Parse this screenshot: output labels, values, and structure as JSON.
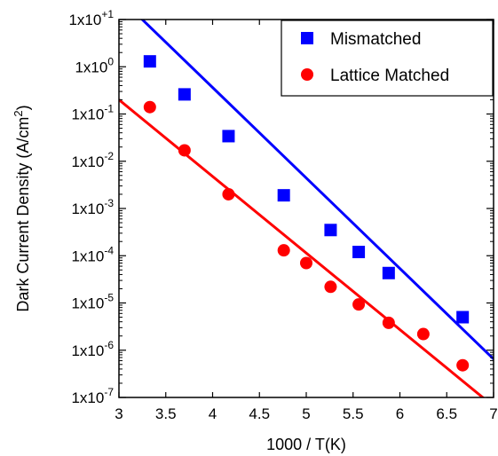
{
  "chart_data": {
    "type": "scatter",
    "xlabel": "1000 / T(K)",
    "ylabel": "Dark Current Density (A/cm²)",
    "ylabel_parts": {
      "main": "Dark Current Density (A/cm",
      "sup": "2",
      "tail": ")"
    },
    "xlim": [
      3,
      7
    ],
    "ylim_log10": [
      -7,
      1
    ],
    "yscale": "log",
    "x_ticks": [
      "3",
      "3.5",
      "4",
      "4.5",
      "5",
      "5.5",
      "6",
      "6.5",
      "7"
    ],
    "x_tick_values": [
      3,
      3.5,
      4,
      4.5,
      5,
      5.5,
      6,
      6.5,
      7
    ],
    "y_tick_exponents": [
      "-7",
      "-6",
      "-5",
      "-4",
      "-3",
      "-2",
      "-1",
      "0",
      "+1"
    ],
    "y_tick_base": "1x10",
    "grid": false,
    "legend_position": "top-right",
    "series": [
      {
        "name": "Mismatched",
        "marker": "square",
        "color": "#0000ff",
        "x": [
          3.33,
          3.7,
          4.17,
          4.76,
          5.26,
          5.56,
          5.88,
          6.67
        ],
        "y": [
          1.3,
          0.26,
          0.034,
          0.0019,
          0.00035,
          0.00012,
          4.3e-05,
          5e-06
        ],
        "fit_line": {
          "x": [
            3,
            7
          ],
          "y": [
            30,
            6.5e-07
          ]
        }
      },
      {
        "name": "Lattice Matched",
        "marker": "circle",
        "color": "#ff0000",
        "x": [
          3.33,
          3.7,
          4.17,
          4.76,
          5.0,
          5.26,
          5.56,
          5.88,
          6.25,
          6.67
        ],
        "y": [
          0.14,
          0.017,
          0.002,
          0.00013,
          7e-05,
          2.2e-05,
          9.3e-06,
          3.8e-06,
          2.2e-06,
          4.8e-07
        ],
        "fit_line": {
          "x": [
            3,
            7
          ],
          "y": [
            0.2,
            6.5e-08
          ]
        }
      }
    ]
  }
}
